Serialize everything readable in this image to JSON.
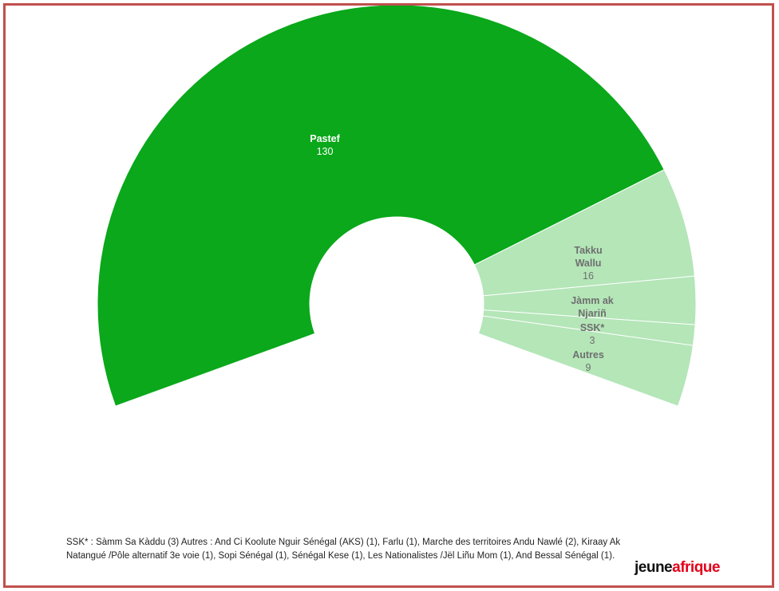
{
  "chart_data": {
    "type": "pie",
    "subtype": "parliament-half-donut",
    "colors": {
      "primary": "#0aa81a",
      "secondary": "#b4e6b8",
      "label_primary": "#ffffff",
      "label_secondary": "#6f6f6f",
      "separator": "#ffffff"
    },
    "series": [
      {
        "name": "Pastef",
        "label_lines": [
          "Pastef"
        ],
        "value": 130,
        "color": "#0aa81a",
        "label_color": "#ffffff"
      },
      {
        "name": "Takku Wallu",
        "label_lines": [
          "Takku",
          "Wallu"
        ],
        "value": 16,
        "color": "#b4e6b8",
        "label_color": "#6f6f6f"
      },
      {
        "name": "Jàmm ak Njariñ",
        "label_lines": [
          "Jàmm ak",
          "Njariñ"
        ],
        "value": 7,
        "show_value": false,
        "color": "#b4e6b8",
        "label_color": "#6f6f6f"
      },
      {
        "name": "SSK*",
        "label_lines": [
          "SSK*"
        ],
        "value": 3,
        "color": "#b4e6b8",
        "label_color": "#6f6f6f"
      },
      {
        "name": "Autres",
        "label_lines": [
          "Autres"
        ],
        "value": 9,
        "color": "#b4e6b8",
        "label_color": "#6f6f6f"
      }
    ]
  },
  "footnote": "SSK* : Sàmm Sa Kàddu (3) Autres : And Ci Koolute Nguir Sénégal (AKS) (1), Farlu (1), Marche des territoires Andu Nawlé (2), Kiraay Ak Natangué /Pôle alternatif 3e voie (1), Sopi Sénégal (1), Sénégal Kese (1), Les Nationalistes /Jël Liñu Mom (1), And Bessal Sénégal (1).",
  "logo": {
    "part1": "jeune",
    "part2": "afrique"
  }
}
